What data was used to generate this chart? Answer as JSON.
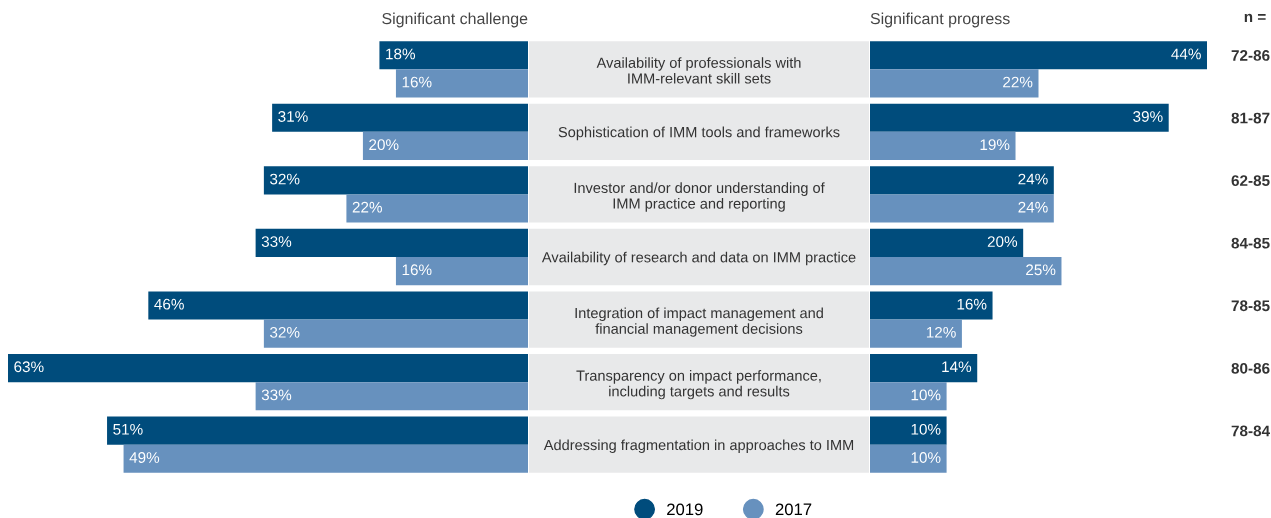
{
  "chart_data": [
    {
      "type": "bar",
      "orientation": "horizontal",
      "title": "Significant challenge",
      "categories": [
        null,
        null,
        null,
        null,
        null,
        null,
        null
      ],
      "series": [
        {
          "name": "2019",
          "color": "#004c7c",
          "values": [
            18,
            31,
            32,
            33,
            46,
            63,
            51
          ],
          "value_labels": [
            "18%",
            "31%",
            "32%",
            "33%",
            "46%",
            "63%",
            "51%"
          ]
        },
        {
          "name": "2017",
          "color": "#6791be",
          "values": [
            16,
            20,
            22,
            16,
            32,
            33,
            49
          ],
          "value_labels": [
            "16%",
            "20%",
            "22%",
            "16%",
            "32%",
            "33%",
            "49%"
          ]
        }
      ],
      "tick_labels": false,
      "legend": "bottom"
    },
    {
      "type": "bar",
      "orientation": "horizontal",
      "title": "Significant progress",
      "categories": [
        "Availability of professionals with\nIMM-relevant skill sets",
        "Sophistication of IMM tools and frameworks",
        "Investor and/or donor understanding of\nIMM practice and reporting",
        "Availability of research and data on IMM practice",
        "Integration of impact management and\nfinancial management decisions",
        "Transparency on impact performance,\nincluding targets and results",
        "Addressing fragmentation in approaches to IMM"
      ],
      "series": [
        {
          "name": "2019",
          "color": "#004c7c",
          "values": [
            44,
            39,
            24,
            20,
            16,
            14,
            10
          ],
          "value_labels": [
            "44%",
            "39%",
            "24%",
            "20%",
            "16%",
            "14%",
            "10%"
          ]
        },
        {
          "name": "2017",
          "color": "#6791be",
          "values": [
            22,
            19,
            24,
            25,
            12,
            10,
            10
          ],
          "value_labels": [
            "22%",
            "19%",
            "24%",
            "25%",
            "12%",
            "10%",
            "10%"
          ]
        }
      ],
      "tick_labels": "y",
      "annotations": [
        "n =",
        "72-86",
        "81-87",
        "62-85",
        "84-85",
        "78-85",
        "80-86",
        "78-84"
      ]
    }
  ]
}
